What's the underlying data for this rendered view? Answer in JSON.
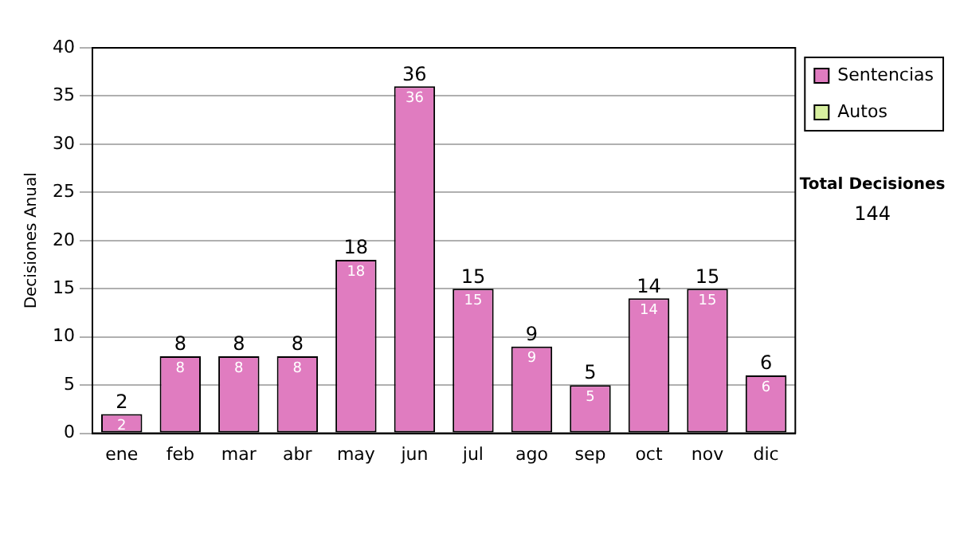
{
  "chart_data": {
    "type": "bar",
    "ylabel": "Decisiones Anual",
    "categories": [
      "ene",
      "feb",
      "mar",
      "abr",
      "may",
      "jun",
      "jul",
      "ago",
      "sep",
      "oct",
      "nov",
      "dic"
    ],
    "stacked": true,
    "series": [
      {
        "name": "Sentencias",
        "color": "#e07cc0",
        "values": [
          2,
          8,
          8,
          8,
          18,
          36,
          15,
          9,
          5,
          14,
          15,
          6
        ],
        "value_labels": [
          "2",
          "8",
          "8",
          "8",
          "18",
          "36",
          "15",
          "9",
          "5",
          "14",
          "15",
          "6"
        ]
      },
      {
        "name": "Autos",
        "color": "#d8f0a0",
        "values": [
          0,
          0,
          0,
          0,
          0,
          0,
          0,
          0,
          0,
          0,
          0,
          0
        ]
      }
    ],
    "totals": [
      "2",
      "8",
      "8",
      "8",
      "18",
      "36",
      "15",
      "9",
      "5",
      "14",
      "15",
      "6"
    ],
    "ylim": [
      0,
      40
    ],
    "yticks": [
      0,
      5,
      10,
      15,
      20,
      25,
      30,
      35,
      40
    ],
    "grid": "y",
    "legend": "right",
    "annotations": [
      "Total Decisiones",
      "144"
    ]
  }
}
